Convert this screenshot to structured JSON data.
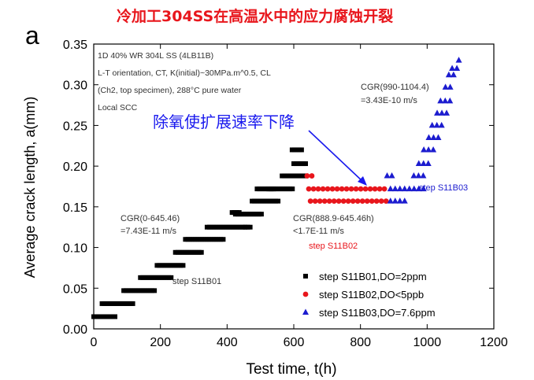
{
  "page_title": "冷加工304SS在高温水中的应力腐蚀开裂",
  "colors": {
    "title": "#e8161c",
    "blue_annotation": "#1a1aee",
    "red_annotation": "#e8161c",
    "arrow": "#1a1aee"
  },
  "chart_data": {
    "type": "scatter",
    "panel_label": "a",
    "xlabel": "Test time, t(h)",
    "ylabel": "Average crack length, a(mm)",
    "xlim": [
      0,
      1200
    ],
    "ylim": [
      0.0,
      0.35
    ],
    "xticks": [
      "0",
      "200",
      "400",
      "600",
      "800",
      "1000",
      "1200"
    ],
    "yticks": [
      "0.00",
      "0.05",
      "0.10",
      "0.15",
      "0.20",
      "0.25",
      "0.30",
      "0.35"
    ],
    "grid": false,
    "legend_position": "bottom-right",
    "info_box": [
      "1D 40% WR 304L SS (4LB11B)",
      "L-T orientation, CT, K(initial)~30MPa.m^0.5, CL",
      "(Ch2, top specimen), 288°C pure water",
      "Local SCC"
    ],
    "annotations": {
      "cgr_first_line1": "CGR(0-645.46)",
      "cgr_first_line2": "=7.43E-11 m/s",
      "cgr_mid_line1": "CGR(888.9-645.46h)",
      "cgr_mid_line2": "<1.7E-11 m/s",
      "cgr_last_line1": "CGR(990-1104.4)",
      "cgr_last_line2": "=3.43E-10 m/s",
      "step1_label": "step S11B01",
      "step2_label": "step S11B02",
      "step3_label": "step S11B03",
      "chinese_note": "除氧使扩展速率下降"
    },
    "series": [
      {
        "name": "step S11B01,DO=2ppm",
        "marker": "square",
        "color": "#000000",
        "segments": [
          {
            "x0": 0,
            "x1": 70,
            "y": 0.015
          },
          {
            "x0": 25,
            "x1": 120,
            "y": 0.031
          },
          {
            "x0": 90,
            "x1": 185,
            "y": 0.047
          },
          {
            "x0": 140,
            "x1": 235,
            "y": 0.063
          },
          {
            "x0": 190,
            "x1": 275,
            "y": 0.078
          },
          {
            "x0": 245,
            "x1": 330,
            "y": 0.094
          },
          {
            "x0": 275,
            "x1": 395,
            "y": 0.11
          },
          {
            "x0": 340,
            "x1": 460,
            "y": 0.125
          },
          {
            "x0": 455,
            "x1": 470,
            "y": 0.125
          },
          {
            "x0": 425,
            "x1": 510,
            "y": 0.141
          },
          {
            "x0": 415,
            "x1": 440,
            "y": 0.143
          },
          {
            "x0": 475,
            "x1": 560,
            "y": 0.157
          },
          {
            "x0": 490,
            "x1": 545,
            "y": 0.172
          },
          {
            "x0": 525,
            "x1": 600,
            "y": 0.172
          },
          {
            "x0": 565,
            "x1": 640,
            "y": 0.188
          },
          {
            "x0": 600,
            "x1": 640,
            "y": 0.203
          },
          {
            "x0": 595,
            "x1": 625,
            "y": 0.22
          }
        ]
      },
      {
        "name": "step S11B02,DO<5ppb",
        "marker": "circle",
        "color": "#e8161c",
        "segments": [
          {
            "x0": 645,
            "x1": 885,
            "y": 0.172
          },
          {
            "x0": 650,
            "x1": 890,
            "y": 0.157
          },
          {
            "x0": 640,
            "x1": 660,
            "y": 0.188
          }
        ]
      },
      {
        "name": "step S11B03,DO=7.6ppm",
        "marker": "triangle",
        "color": "#1c1ccf",
        "segments": [
          {
            "x0": 890,
            "x1": 990,
            "y": 0.172
          },
          {
            "x0": 890,
            "x1": 935,
            "y": 0.157
          },
          {
            "x0": 880,
            "x1": 900,
            "y": 0.188
          },
          {
            "x0": 960,
            "x1": 1000,
            "y": 0.188
          },
          {
            "x0": 975,
            "x1": 1010,
            "y": 0.203
          },
          {
            "x0": 990,
            "x1": 1020,
            "y": 0.22
          },
          {
            "x0": 1005,
            "x1": 1035,
            "y": 0.235
          },
          {
            "x0": 1015,
            "x1": 1045,
            "y": 0.25
          },
          {
            "x0": 1030,
            "x1": 1060,
            "y": 0.265
          },
          {
            "x0": 1040,
            "x1": 1070,
            "y": 0.28
          },
          {
            "x0": 1055,
            "x1": 1080,
            "y": 0.297
          },
          {
            "x0": 1065,
            "x1": 1090,
            "y": 0.312
          },
          {
            "x0": 1075,
            "x1": 1100,
            "y": 0.32
          },
          {
            "x0": 1095,
            "x1": 1105,
            "y": 0.33
          }
        ]
      }
    ]
  }
}
